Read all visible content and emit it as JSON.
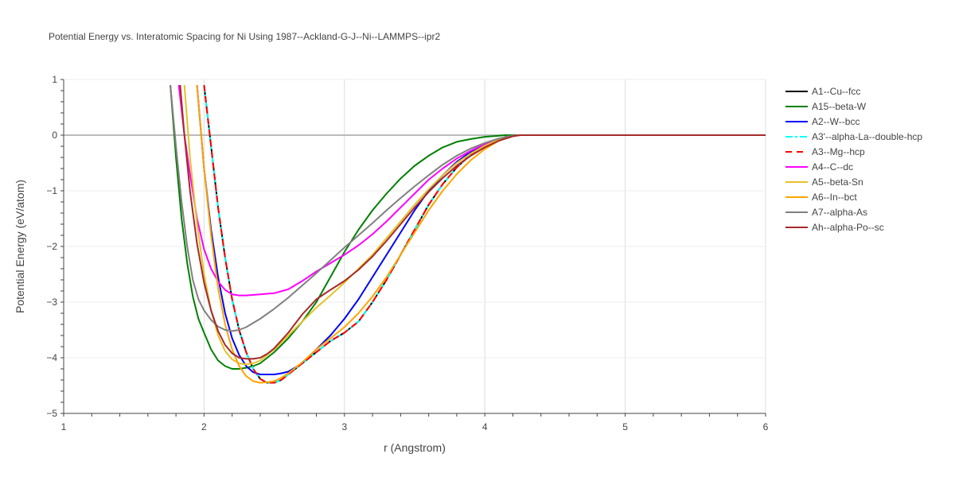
{
  "chart_data": {
    "type": "line",
    "title": "Potential Energy vs. Interatomic Spacing for Ni Using 1987--Ackland-G-J--Ni--LAMMPS--ipr2",
    "xlabel": "r (Angstrom)",
    "ylabel": "Potential Energy (eV/atom)",
    "xlim": [
      1,
      6
    ],
    "ylim": [
      -5,
      1
    ],
    "xticks": [
      1,
      2,
      3,
      4,
      5,
      6
    ],
    "yticks": [
      1,
      0,
      -1,
      -2,
      -3,
      -4,
      -5
    ],
    "xtick_labels": [
      "1",
      "2",
      "3",
      "4",
      "5",
      "6"
    ],
    "ytick_labels": [
      "1",
      "0",
      "−1",
      "−2",
      "−3",
      "−4",
      "−5"
    ],
    "grid": true,
    "legend_position": "right",
    "series": [
      {
        "name": "A1--Cu--fcc",
        "color": "#000000",
        "dash": "solid",
        "x": [
          2.0,
          2.05,
          2.1,
          2.15,
          2.2,
          2.25,
          2.3,
          2.35,
          2.4,
          2.45,
          2.5,
          2.55,
          2.6,
          2.7,
          2.8,
          2.9,
          3.0,
          3.1,
          3.2,
          3.3,
          3.4,
          3.5,
          3.6,
          3.7,
          3.8,
          3.9,
          4.0,
          4.1,
          4.15,
          4.2,
          4.25,
          4.3,
          4.5,
          5.0,
          6.0
        ],
        "y": [
          0.9,
          -0.2,
          -1.3,
          -2.2,
          -2.95,
          -3.5,
          -3.9,
          -4.2,
          -4.38,
          -4.45,
          -4.45,
          -4.4,
          -4.3,
          -4.1,
          -3.9,
          -3.7,
          -3.55,
          -3.35,
          -3.0,
          -2.6,
          -2.15,
          -1.7,
          -1.25,
          -0.88,
          -0.58,
          -0.35,
          -0.2,
          -0.08,
          -0.03,
          -0.01,
          0,
          0,
          0,
          0,
          0
        ]
      },
      {
        "name": "A15--beta-W",
        "color": "#008000",
        "dash": "solid",
        "x": [
          1.76,
          1.8,
          1.84,
          1.88,
          1.92,
          1.96,
          2.0,
          2.05,
          2.1,
          2.15,
          2.2,
          2.25,
          2.3,
          2.35,
          2.4,
          2.5,
          2.6,
          2.7,
          2.8,
          2.9,
          3.0,
          3.1,
          3.2,
          3.3,
          3.4,
          3.5,
          3.6,
          3.7,
          3.8,
          3.9,
          4.0,
          4.05,
          4.1,
          4.15,
          4.2,
          4.3,
          5.0,
          6.0
        ],
        "y": [
          0.9,
          -0.4,
          -1.5,
          -2.3,
          -2.9,
          -3.3,
          -3.55,
          -3.85,
          -4.05,
          -4.15,
          -4.2,
          -4.2,
          -4.18,
          -4.15,
          -4.1,
          -3.9,
          -3.65,
          -3.35,
          -3.0,
          -2.55,
          -2.1,
          -1.7,
          -1.35,
          -1.05,
          -0.78,
          -0.55,
          -0.37,
          -0.22,
          -0.12,
          -0.07,
          -0.03,
          -0.02,
          -0.01,
          0,
          0,
          0,
          0,
          0
        ]
      },
      {
        "name": "A2--W--bcc",
        "color": "#0000ff",
        "dash": "solid",
        "x": [
          1.95,
          2.0,
          2.05,
          2.1,
          2.15,
          2.2,
          2.25,
          2.3,
          2.35,
          2.4,
          2.45,
          2.5,
          2.55,
          2.6,
          2.7,
          2.8,
          2.9,
          3.0,
          3.1,
          3.2,
          3.3,
          3.4,
          3.5,
          3.6,
          3.7,
          3.8,
          3.9,
          4.0,
          4.1,
          4.2,
          4.25,
          4.3,
          5.0,
          6.0
        ],
        "y": [
          0.9,
          -0.6,
          -1.7,
          -2.55,
          -3.2,
          -3.65,
          -3.95,
          -4.15,
          -4.26,
          -4.3,
          -4.3,
          -4.3,
          -4.28,
          -4.25,
          -4.1,
          -3.85,
          -3.6,
          -3.3,
          -2.95,
          -2.55,
          -2.15,
          -1.75,
          -1.35,
          -1.0,
          -0.72,
          -0.48,
          -0.3,
          -0.17,
          -0.07,
          -0.01,
          0,
          0,
          0,
          0
        ]
      },
      {
        "name": "A3'--alpha-La--double-hcp",
        "color": "#00ffff",
        "dash": "dashdot",
        "x": [
          2.0,
          2.05,
          2.1,
          2.15,
          2.2,
          2.25,
          2.3,
          2.35,
          2.4,
          2.45,
          2.5,
          2.55,
          2.6,
          2.7,
          2.8,
          2.9,
          3.0,
          3.1,
          3.2,
          3.3,
          3.4,
          3.5,
          3.6,
          3.7,
          3.8,
          3.9,
          4.0,
          4.1,
          4.15,
          4.2,
          4.25,
          4.3,
          4.5,
          5.0,
          6.0
        ],
        "y": [
          0.9,
          -0.2,
          -1.3,
          -2.2,
          -2.95,
          -3.5,
          -3.9,
          -4.2,
          -4.38,
          -4.45,
          -4.45,
          -4.4,
          -4.3,
          -4.1,
          -3.9,
          -3.7,
          -3.55,
          -3.35,
          -3.0,
          -2.6,
          -2.15,
          -1.7,
          -1.25,
          -0.88,
          -0.58,
          -0.35,
          -0.2,
          -0.08,
          -0.03,
          -0.01,
          0,
          0,
          0,
          0,
          0
        ]
      },
      {
        "name": "A3--Mg--hcp",
        "color": "#ff0000",
        "dash": "dash",
        "x": [
          2.0,
          2.05,
          2.1,
          2.15,
          2.2,
          2.25,
          2.3,
          2.35,
          2.4,
          2.45,
          2.5,
          2.55,
          2.6,
          2.7,
          2.8,
          2.9,
          3.0,
          3.1,
          3.2,
          3.3,
          3.4,
          3.5,
          3.6,
          3.7,
          3.8,
          3.9,
          4.0,
          4.1,
          4.15,
          4.2,
          4.25,
          4.3,
          4.5,
          5.0,
          6.0
        ],
        "y": [
          0.9,
          -0.2,
          -1.3,
          -2.2,
          -2.95,
          -3.5,
          -3.9,
          -4.2,
          -4.38,
          -4.45,
          -4.45,
          -4.4,
          -4.3,
          -4.1,
          -3.9,
          -3.7,
          -3.55,
          -3.35,
          -3.0,
          -2.6,
          -2.15,
          -1.7,
          -1.25,
          -0.88,
          -0.58,
          -0.35,
          -0.2,
          -0.08,
          -0.03,
          -0.01,
          0,
          0,
          0,
          0,
          0
        ]
      },
      {
        "name": "A4--C--dc",
        "color": "#ff00ff",
        "dash": "solid",
        "x": [
          1.82,
          1.86,
          1.9,
          1.95,
          2.0,
          2.05,
          2.1,
          2.15,
          2.2,
          2.25,
          2.3,
          2.4,
          2.5,
          2.6,
          2.7,
          2.8,
          2.9,
          3.0,
          3.1,
          3.2,
          3.3,
          3.4,
          3.5,
          3.6,
          3.7,
          3.8,
          3.9,
          4.0,
          4.1,
          4.2,
          4.25,
          4.3,
          5.0,
          6.0
        ],
        "y": [
          0.9,
          0.0,
          -0.7,
          -1.5,
          -2.05,
          -2.4,
          -2.63,
          -2.78,
          -2.86,
          -2.88,
          -2.88,
          -2.86,
          -2.84,
          -2.77,
          -2.62,
          -2.45,
          -2.3,
          -2.15,
          -1.98,
          -1.78,
          -1.55,
          -1.3,
          -1.05,
          -0.8,
          -0.6,
          -0.42,
          -0.28,
          -0.16,
          -0.07,
          -0.01,
          0,
          0,
          0,
          0
        ]
      },
      {
        "name": "A5--beta-Sn",
        "color": "#e5c12a",
        "dash": "solid",
        "x": [
          1.86,
          1.9,
          1.95,
          2.0,
          2.05,
          2.1,
          2.15,
          2.2,
          2.25,
          2.3,
          2.35,
          2.4,
          2.5,
          2.6,
          2.7,
          2.8,
          2.9,
          3.0,
          3.1,
          3.2,
          3.3,
          3.4,
          3.5,
          3.6,
          3.7,
          3.8,
          3.9,
          4.0,
          4.1,
          4.2,
          4.25,
          4.3,
          5.0,
          6.0
        ],
        "y": [
          0.9,
          -0.4,
          -1.6,
          -2.5,
          -3.15,
          -3.6,
          -3.88,
          -4.03,
          -4.1,
          -4.12,
          -4.1,
          -4.05,
          -3.85,
          -3.6,
          -3.35,
          -3.1,
          -2.88,
          -2.65,
          -2.4,
          -2.15,
          -1.85,
          -1.55,
          -1.25,
          -0.97,
          -0.72,
          -0.5,
          -0.33,
          -0.19,
          -0.08,
          -0.01,
          0,
          0,
          0,
          0
        ]
      },
      {
        "name": "A6--In--bct",
        "color": "#ffa500",
        "dash": "solid",
        "x": [
          1.95,
          2.0,
          2.05,
          2.1,
          2.15,
          2.2,
          2.25,
          2.3,
          2.35,
          2.4,
          2.45,
          2.5,
          2.55,
          2.6,
          2.7,
          2.8,
          2.9,
          3.0,
          3.1,
          3.2,
          3.3,
          3.4,
          3.5,
          3.6,
          3.7,
          3.8,
          3.9,
          4.0,
          4.1,
          4.2,
          4.25,
          4.3,
          5.0,
          6.0
        ],
        "y": [
          0.9,
          -0.6,
          -1.8,
          -2.75,
          -3.4,
          -3.85,
          -4.15,
          -4.33,
          -4.42,
          -4.45,
          -4.44,
          -4.42,
          -4.36,
          -4.28,
          -4.08,
          -3.85,
          -3.65,
          -3.45,
          -3.2,
          -2.9,
          -2.55,
          -2.15,
          -1.75,
          -1.35,
          -1.0,
          -0.7,
          -0.45,
          -0.25,
          -0.1,
          -0.02,
          0,
          0,
          0,
          0
        ]
      },
      {
        "name": "A7--alpha-As",
        "color": "#808080",
        "dash": "solid",
        "x": [
          1.76,
          1.8,
          1.84,
          1.88,
          1.92,
          1.96,
          2.0,
          2.05,
          2.1,
          2.15,
          2.2,
          2.25,
          2.3,
          2.4,
          2.5,
          2.6,
          2.7,
          2.8,
          2.9,
          3.0,
          3.1,
          3.2,
          3.3,
          3.4,
          3.5,
          3.6,
          3.7,
          3.8,
          3.9,
          4.0,
          4.1,
          4.2,
          4.25,
          4.3,
          5.0,
          6.0
        ],
        "y": [
          0.9,
          -0.2,
          -1.2,
          -2.0,
          -2.6,
          -2.95,
          -3.15,
          -3.32,
          -3.44,
          -3.5,
          -3.52,
          -3.5,
          -3.45,
          -3.3,
          -3.12,
          -2.92,
          -2.7,
          -2.48,
          -2.25,
          -2.02,
          -1.8,
          -1.58,
          -1.35,
          -1.13,
          -0.92,
          -0.72,
          -0.53,
          -0.37,
          -0.24,
          -0.14,
          -0.06,
          -0.01,
          0,
          0,
          0,
          0
        ]
      },
      {
        "name": "Ah--alpha-Po--sc",
        "color": "#a52a2a",
        "dash": "solid",
        "x": [
          1.83,
          1.86,
          1.9,
          1.95,
          2.0,
          2.05,
          2.1,
          2.15,
          2.2,
          2.25,
          2.3,
          2.35,
          2.4,
          2.45,
          2.5,
          2.6,
          2.7,
          2.8,
          2.9,
          3.0,
          3.1,
          3.2,
          3.3,
          3.4,
          3.5,
          3.6,
          3.7,
          3.8,
          3.9,
          4.0,
          4.1,
          4.2,
          4.25,
          4.3,
          5.0,
          6.0
        ],
        "y": [
          0.9,
          0.0,
          -1.0,
          -1.95,
          -2.65,
          -3.15,
          -3.52,
          -3.77,
          -3.92,
          -4.0,
          -4.02,
          -4.02,
          -4.0,
          -3.93,
          -3.83,
          -3.55,
          -3.22,
          -2.95,
          -2.78,
          -2.62,
          -2.42,
          -2.18,
          -1.9,
          -1.6,
          -1.3,
          -1.02,
          -0.77,
          -0.55,
          -0.37,
          -0.22,
          -0.1,
          -0.02,
          0,
          0,
          0,
          0
        ]
      }
    ]
  }
}
